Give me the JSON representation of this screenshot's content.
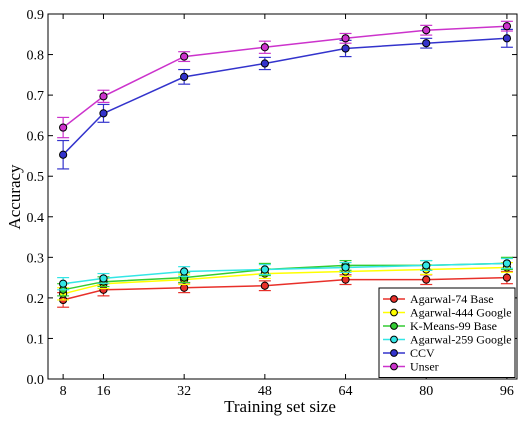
{
  "chart_data": {
    "type": "line",
    "title": "",
    "xlabel": "Training set size",
    "ylabel": "Accuracy",
    "x": [
      8,
      16,
      32,
      48,
      64,
      80,
      96
    ],
    "xlim": [
      5,
      98
    ],
    "ylim": [
      0.0,
      0.9
    ],
    "yticks": [
      0.0,
      0.1,
      0.2,
      0.3,
      0.4,
      0.5,
      0.6,
      0.7,
      0.8,
      0.9
    ],
    "ytick_labels": [
      "0.0",
      "0.1",
      "0.2",
      "0.3",
      "0.4",
      "0.5",
      "0.6",
      "0.7",
      "0.8",
      "0.9"
    ],
    "xtick_labels": [
      "8",
      "16",
      "32",
      "48",
      "64",
      "80",
      "96"
    ],
    "grid": false,
    "legend_position": "bottom-right",
    "series": [
      {
        "name": "Agarwal-74 Base",
        "color": "#e8302a",
        "values": [
          0.195,
          0.22,
          0.225,
          0.23,
          0.245,
          0.245,
          0.25
        ],
        "errors": [
          0.018,
          0.015,
          0.012,
          0.012,
          0.012,
          0.012,
          0.015
        ]
      },
      {
        "name": "Agarwal-444 Google",
        "color": "#ffff00",
        "values": [
          0.21,
          0.235,
          0.245,
          0.26,
          0.265,
          0.27,
          0.275
        ],
        "errors": [
          0.015,
          0.012,
          0.012,
          0.012,
          0.012,
          0.012,
          0.012
        ]
      },
      {
        "name": "K-Means-99 Base",
        "color": "#33cc33",
        "values": [
          0.22,
          0.24,
          0.25,
          0.27,
          0.28,
          0.28,
          0.285
        ],
        "errors": [
          0.015,
          0.012,
          0.012,
          0.015,
          0.012,
          0.012,
          0.015
        ]
      },
      {
        "name": "Agarwal-259 Google",
        "color": "#33e6e6",
        "values": [
          0.235,
          0.248,
          0.265,
          0.27,
          0.275,
          0.28,
          0.285
        ],
        "errors": [
          0.015,
          0.012,
          0.012,
          0.012,
          0.012,
          0.012,
          0.012
        ]
      },
      {
        "name": "CCV",
        "color": "#3333cc",
        "values": [
          0.553,
          0.655,
          0.745,
          0.778,
          0.815,
          0.828,
          0.84
        ],
        "errors": [
          0.035,
          0.022,
          0.018,
          0.015,
          0.02,
          0.012,
          0.022
        ]
      },
      {
        "name": "Unser",
        "color": "#cc33cc",
        "values": [
          0.62,
          0.697,
          0.795,
          0.818,
          0.84,
          0.86,
          0.87
        ],
        "errors": [
          0.025,
          0.015,
          0.012,
          0.015,
          0.012,
          0.012,
          0.012
        ]
      }
    ]
  }
}
